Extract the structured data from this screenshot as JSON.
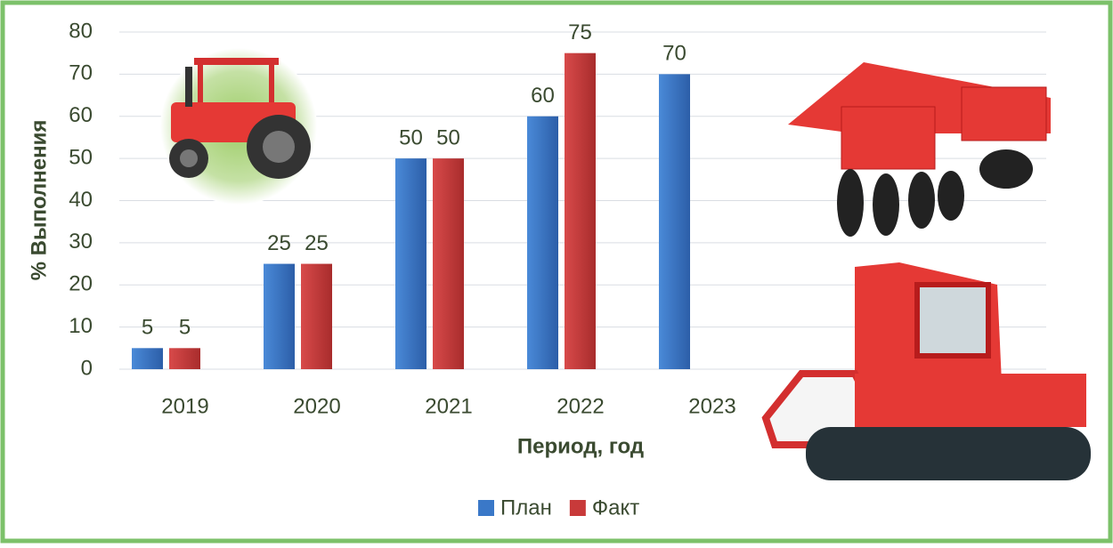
{
  "chart_data": {
    "type": "bar",
    "x_label": "Период, год",
    "y_label": "% Выполнения",
    "categories": [
      "2019",
      "2020",
      "2021",
      "2022",
      "2023"
    ],
    "series": [
      {
        "name": "План",
        "color": "#3a78c8",
        "values": [
          5,
          25,
          50,
          60,
          70
        ]
      },
      {
        "name": "Факт",
        "color": "#c83a3a",
        "values": [
          5,
          25,
          50,
          75,
          null
        ]
      }
    ],
    "ylim": [
      0,
      80
    ],
    "yticks": [
      0,
      10,
      20,
      30,
      40,
      50,
      60,
      70,
      80
    ],
    "grid": true,
    "legend": "bottom"
  }
}
